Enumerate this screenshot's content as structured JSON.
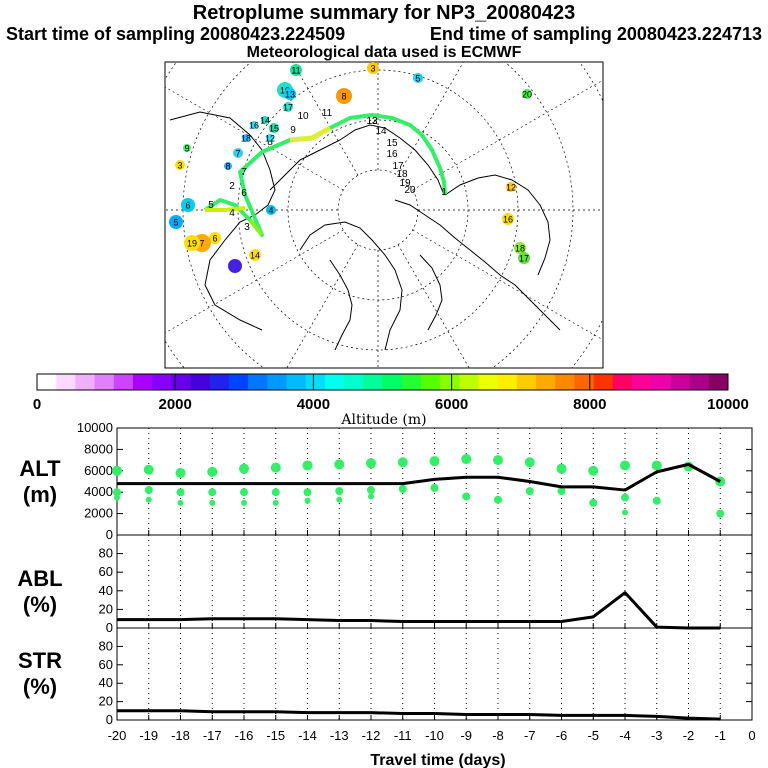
{
  "header": {
    "title": "Retroplume summary for NP3_20080423",
    "start": "Start time of sampling 20080423.224509",
    "end": "End time of sampling 20080423.224713",
    "met": "Meteorological data used is ECMWF"
  },
  "map": {
    "day_labels": [
      "1",
      "2",
      "3",
      "4",
      "5",
      "6",
      "7",
      "8",
      "9",
      "10",
      "11",
      "12",
      "13",
      "14",
      "15",
      "16",
      "17",
      "18",
      "19",
      "20"
    ],
    "plume_markers": [
      {
        "day": "11",
        "color": "#22dd99"
      },
      {
        "day": "10",
        "color": "#22ddcc"
      },
      {
        "day": "13",
        "color": "#00ccff"
      },
      {
        "day": "17",
        "color": "#33ddcc"
      },
      {
        "day": "14",
        "color": "#22ddbb"
      },
      {
        "day": "15",
        "color": "#22ddaa"
      },
      {
        "day": "12",
        "color": "#33ddee"
      },
      {
        "day": "16",
        "color": "#33ddff"
      },
      {
        "day": "18",
        "color": "#33bbff"
      },
      {
        "day": "7",
        "color": "#33ccff"
      },
      {
        "day": "8",
        "color": "#33aaff"
      },
      {
        "day": "9",
        "color": "#44ee66"
      },
      {
        "day": "6",
        "color": "#ffdd00"
      },
      {
        "day": "7",
        "color": "#ffaa00"
      },
      {
        "day": "8",
        "color": "#ff9900"
      },
      {
        "day": "3",
        "color": "#ffcc00"
      },
      {
        "day": "5",
        "color": "#22ccee"
      },
      {
        "day": "4",
        "color": "#00bbee"
      },
      {
        "day": "3",
        "color": "#ffdd00"
      },
      {
        "day": "5",
        "color": "#00aaff"
      },
      {
        "day": "6",
        "color": "#00ccee"
      },
      {
        "day": "19",
        "color": "#ffdd00"
      },
      {
        "day": "14",
        "color": "#ffdd00"
      },
      {
        "day": "16",
        "color": "#ffdd00"
      },
      {
        "day": "18",
        "color": "#88ee44"
      },
      {
        "day": "17",
        "color": "#66dd44"
      },
      {
        "day": "12",
        "color": "#ffcc00"
      },
      {
        "day": "20",
        "color": "#44ee44"
      }
    ]
  },
  "colorbar": {
    "label": "Altitude (m)",
    "ticks": [
      "0",
      "2000",
      "4000",
      "6000",
      "8000",
      "10000"
    ],
    "colors": [
      "#ffffff",
      "#ffd8ff",
      "#f0b0ff",
      "#e080ff",
      "#cc44ff",
      "#aa00ff",
      "#8800ff",
      "#6600ee",
      "#4400dd",
      "#2222ee",
      "#0044ff",
      "#0077ff",
      "#0099ff",
      "#00bbff",
      "#00ddff",
      "#00ffee",
      "#00ffcc",
      "#00ff99",
      "#00ff66",
      "#22ff33",
      "#55ff00",
      "#88ff00",
      "#bbff00",
      "#eeff00",
      "#ffee00",
      "#ffcc00",
      "#ffaa00",
      "#ff8800",
      "#ff6600",
      "#ff3300",
      "#ff0066",
      "#ff0099",
      "#ee00aa",
      "#cc0099",
      "#aa0088",
      "#880066"
    ]
  },
  "chart_data": [
    {
      "type": "line",
      "title": "ALT (m)",
      "xlabel": "Travel time (days)",
      "ylabel": "ALT (m)",
      "ylim": [
        0,
        10000
      ],
      "y_ticks": [
        "0",
        "2000",
        "4000",
        "6000",
        "8000",
        "10000"
      ],
      "x": [
        -20,
        -19,
        -18,
        -17,
        -16,
        -15,
        -14,
        -13,
        -12,
        -11,
        -10,
        -9,
        -8,
        -7,
        -6,
        -5,
        -4,
        -3,
        -2,
        -1
      ],
      "series": [
        {
          "name": "mean altitude",
          "values": [
            4800,
            4800,
            4800,
            4800,
            4800,
            4800,
            4800,
            4800,
            4800,
            4800,
            5200,
            5400,
            5400,
            5000,
            4500,
            4500,
            4200,
            5900,
            6600,
            5000
          ]
        }
      ],
      "clusters": [
        {
          "x": -20,
          "y": [
            6000,
            4000,
            3500
          ]
        },
        {
          "x": -19,
          "y": [
            6100,
            4200,
            3300
          ]
        },
        {
          "x": -18,
          "y": [
            5800,
            4000,
            3000
          ]
        },
        {
          "x": -17,
          "y": [
            5900,
            4000,
            3000
          ]
        },
        {
          "x": -16,
          "y": [
            6200,
            4000,
            3000
          ]
        },
        {
          "x": -15,
          "y": [
            6300,
            4000,
            3000
          ]
        },
        {
          "x": -14,
          "y": [
            6500,
            4000,
            3200
          ]
        },
        {
          "x": -13,
          "y": [
            6600,
            4100,
            3300
          ]
        },
        {
          "x": -12,
          "y": [
            6700,
            4200,
            3600
          ]
        },
        {
          "x": -11,
          "y": [
            6800,
            4300
          ]
        },
        {
          "x": -10,
          "y": [
            6900,
            4400
          ]
        },
        {
          "x": -9,
          "y": [
            7100,
            3600
          ]
        },
        {
          "x": -8,
          "y": [
            7000,
            3300
          ]
        },
        {
          "x": -7,
          "y": [
            6800,
            4100
          ]
        },
        {
          "x": -6,
          "y": [
            6200,
            4100
          ]
        },
        {
          "x": -5,
          "y": [
            6000,
            3000
          ]
        },
        {
          "x": -4,
          "y": [
            6500,
            3500,
            2100
          ]
        },
        {
          "x": -3,
          "y": [
            6500,
            3200
          ]
        },
        {
          "x": -2,
          "y": [
            6400
          ]
        },
        {
          "x": -1,
          "y": [
            5000,
            2000
          ]
        }
      ]
    },
    {
      "type": "line",
      "title": "ABL (%)",
      "ylabel": "ABL (%)",
      "ylim": [
        0,
        100
      ],
      "y_ticks": [
        "0",
        "20",
        "40",
        "60",
        "80"
      ],
      "x": [
        -20,
        -19,
        -18,
        -17,
        -16,
        -15,
        -14,
        -13,
        -12,
        -11,
        -10,
        -9,
        -8,
        -7,
        -6,
        -5,
        -4,
        -3,
        -2,
        -1
      ],
      "series": [
        {
          "name": "ABL fraction",
          "values": [
            9,
            9,
            9,
            10,
            10,
            10,
            9,
            8,
            8,
            7,
            7,
            7,
            7,
            7,
            7,
            12,
            38,
            1,
            0,
            0
          ]
        }
      ]
    },
    {
      "type": "line",
      "title": "STR (%)",
      "ylabel": "STR (%)",
      "ylim": [
        0,
        100
      ],
      "y_ticks": [
        "0",
        "20",
        "40",
        "60",
        "80"
      ],
      "x": [
        -20,
        -19,
        -18,
        -17,
        -16,
        -15,
        -14,
        -13,
        -12,
        -11,
        -10,
        -9,
        -8,
        -7,
        -6,
        -5,
        -4,
        -3,
        -2,
        -1
      ],
      "series": [
        {
          "name": "stratospheric fraction",
          "values": [
            10,
            10,
            10,
            9,
            9,
            9,
            8,
            8,
            8,
            7,
            7,
            6,
            6,
            6,
            5,
            5,
            5,
            4,
            2,
            1
          ]
        }
      ],
      "x_tick_labels": [
        "-20",
        "-19",
        "-18",
        "-17",
        "-16",
        "-15",
        "-14",
        "-13",
        "-12",
        "-11",
        "-10",
        "-9",
        "-8",
        "-7",
        "-6",
        "-5",
        "-4",
        "-3",
        "-2",
        "-1",
        "0"
      ]
    }
  ],
  "panels": {
    "alt_label": [
      "ALT",
      "(m)"
    ],
    "abl_label": [
      "ABL",
      "(%)"
    ],
    "str_label": [
      "STR",
      "(%)"
    ],
    "x_axis_title": "Travel time (days)"
  }
}
